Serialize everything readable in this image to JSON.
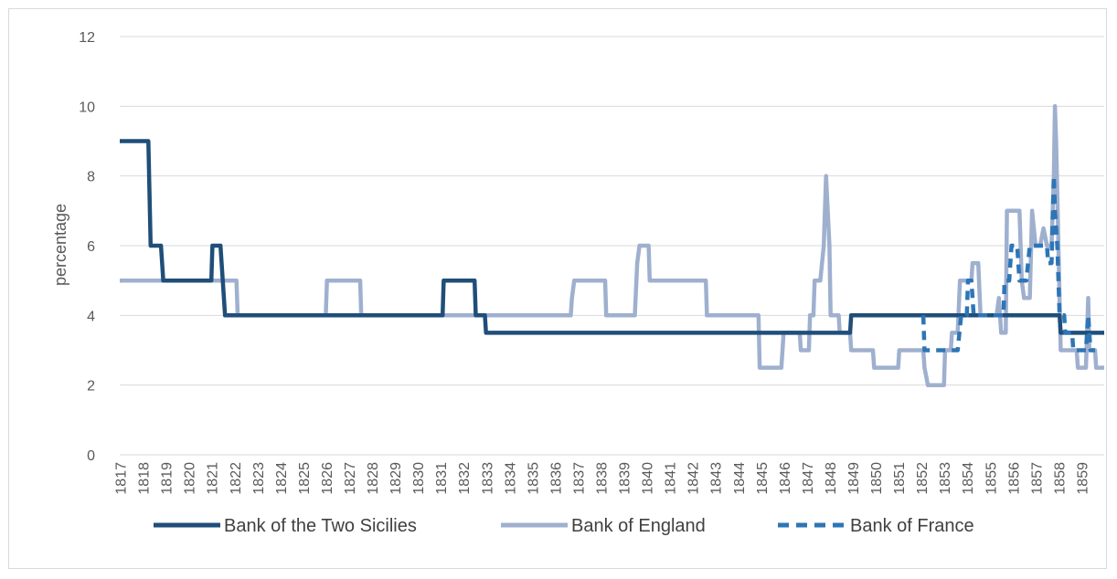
{
  "chart_data": {
    "type": "line",
    "title": "",
    "xlabel": "",
    "ylabel": "percentage",
    "ylim": [
      0,
      12
    ],
    "yticks": [
      0,
      2,
      4,
      6,
      8,
      10,
      12
    ],
    "xlim": [
      1817,
      1860
    ],
    "xtick_labels": [
      "1817",
      "1818",
      "1819",
      "1820",
      "1821",
      "1822",
      "1823",
      "1824",
      "1825",
      "1826",
      "1827",
      "1828",
      "1829",
      "1830",
      "1831",
      "1832",
      "1833",
      "1834",
      "1835",
      "1836",
      "1837",
      "1838",
      "1839",
      "1840",
      "1841",
      "1842",
      "1843",
      "1844",
      "1845",
      "1846",
      "1847",
      "1848",
      "1849",
      "1850",
      "1851",
      "1852",
      "1853",
      "1854",
      "1855",
      "1856",
      "1857",
      "1858",
      "1859"
    ],
    "grid": "horizontal",
    "legend_position": "bottom",
    "colors": {
      "two_sicilies": "#1f4e79",
      "england": "#9fb0cf",
      "france": "#2e75b6"
    },
    "series": [
      {
        "name": "Bank of the Two Sicilies",
        "style": "solid",
        "color": "#1f4e79",
        "points": [
          [
            1817.0,
            9
          ],
          [
            1818.25,
            9
          ],
          [
            1818.35,
            6
          ],
          [
            1818.8,
            6
          ],
          [
            1818.9,
            5
          ],
          [
            1821.0,
            5
          ],
          [
            1821.05,
            6
          ],
          [
            1821.4,
            6
          ],
          [
            1821.6,
            4
          ],
          [
            1831.1,
            4
          ],
          [
            1831.15,
            5
          ],
          [
            1832.5,
            5
          ],
          [
            1832.55,
            4
          ],
          [
            1832.95,
            4
          ],
          [
            1833.0,
            3.5
          ],
          [
            1848.9,
            3.5
          ],
          [
            1848.95,
            4
          ],
          [
            1858.05,
            4
          ],
          [
            1858.1,
            3.5
          ],
          [
            1860.0,
            3.5
          ]
        ]
      },
      {
        "name": "Bank of England",
        "style": "solid",
        "color": "#9fb0cf",
        "points": [
          [
            1817.0,
            5
          ],
          [
            1822.1,
            5
          ],
          [
            1822.15,
            4
          ],
          [
            1826.0,
            4
          ],
          [
            1826.05,
            5
          ],
          [
            1827.5,
            5
          ],
          [
            1827.55,
            4
          ],
          [
            1836.7,
            4
          ],
          [
            1836.75,
            4.5
          ],
          [
            1836.85,
            5
          ],
          [
            1838.2,
            5
          ],
          [
            1838.25,
            4
          ],
          [
            1839.5,
            4
          ],
          [
            1839.6,
            5.5
          ],
          [
            1839.7,
            6
          ],
          [
            1840.1,
            6
          ],
          [
            1840.15,
            5
          ],
          [
            1842.6,
            5
          ],
          [
            1842.65,
            4
          ],
          [
            1844.9,
            4
          ],
          [
            1844.95,
            2.5
          ],
          [
            1845.9,
            2.5
          ],
          [
            1846.0,
            3.5
          ],
          [
            1846.7,
            3.5
          ],
          [
            1846.75,
            3
          ],
          [
            1847.1,
            3
          ],
          [
            1847.15,
            4
          ],
          [
            1847.3,
            4
          ],
          [
            1847.35,
            5
          ],
          [
            1847.6,
            5
          ],
          [
            1847.75,
            6
          ],
          [
            1847.85,
            8
          ],
          [
            1848.0,
            6
          ],
          [
            1848.05,
            4
          ],
          [
            1848.4,
            4
          ],
          [
            1848.45,
            3.5
          ],
          [
            1848.9,
            3.5
          ],
          [
            1848.95,
            3
          ],
          [
            1849.9,
            3
          ],
          [
            1849.95,
            2.5
          ],
          [
            1851.0,
            2.5
          ],
          [
            1851.05,
            3
          ],
          [
            1852.1,
            3
          ],
          [
            1852.15,
            2.5
          ],
          [
            1852.3,
            2
          ],
          [
            1853.0,
            2
          ],
          [
            1853.05,
            3
          ],
          [
            1853.3,
            3
          ],
          [
            1853.35,
            3.5
          ],
          [
            1853.6,
            3.5
          ],
          [
            1853.7,
            5
          ],
          [
            1854.2,
            5
          ],
          [
            1854.25,
            5.5
          ],
          [
            1854.5,
            5.5
          ],
          [
            1854.6,
            4
          ],
          [
            1855.3,
            4
          ],
          [
            1855.4,
            4.5
          ],
          [
            1855.5,
            3.5
          ],
          [
            1855.7,
            3.5
          ],
          [
            1855.75,
            7
          ],
          [
            1856.3,
            7
          ],
          [
            1856.4,
            5
          ],
          [
            1856.5,
            4.5
          ],
          [
            1856.75,
            4.5
          ],
          [
            1856.85,
            7
          ],
          [
            1857.0,
            6
          ],
          [
            1857.2,
            6
          ],
          [
            1857.35,
            6.5
          ],
          [
            1857.5,
            6
          ],
          [
            1857.7,
            6
          ],
          [
            1857.8,
            8
          ],
          [
            1857.85,
            10
          ],
          [
            1857.9,
            9
          ],
          [
            1858.0,
            6
          ],
          [
            1858.1,
            3
          ],
          [
            1858.8,
            3
          ],
          [
            1858.85,
            2.5
          ],
          [
            1859.2,
            2.5
          ],
          [
            1859.3,
            4.5
          ],
          [
            1859.35,
            3
          ],
          [
            1859.6,
            3
          ],
          [
            1859.65,
            2.5
          ],
          [
            1860.0,
            2.5
          ]
        ]
      },
      {
        "name": "Bank of France",
        "style": "dashed",
        "color": "#2e75b6",
        "points": [
          [
            1852.1,
            4
          ],
          [
            1852.15,
            3
          ],
          [
            1853.6,
            3
          ],
          [
            1853.75,
            4
          ],
          [
            1854.0,
            4
          ],
          [
            1854.05,
            5
          ],
          [
            1854.2,
            5
          ],
          [
            1854.3,
            4
          ],
          [
            1855.6,
            4
          ],
          [
            1855.65,
            5
          ],
          [
            1855.85,
            5
          ],
          [
            1855.95,
            6
          ],
          [
            1856.2,
            6
          ],
          [
            1856.3,
            5
          ],
          [
            1856.6,
            5
          ],
          [
            1856.75,
            6
          ],
          [
            1857.5,
            6
          ],
          [
            1857.55,
            5.5
          ],
          [
            1857.7,
            5.5
          ],
          [
            1857.8,
            8
          ],
          [
            1857.85,
            7
          ],
          [
            1857.95,
            6
          ],
          [
            1858.05,
            4
          ],
          [
            1858.25,
            4
          ],
          [
            1858.3,
            3.5
          ],
          [
            1858.6,
            3.5
          ],
          [
            1858.65,
            3
          ],
          [
            1859.2,
            3
          ],
          [
            1859.3,
            4
          ],
          [
            1859.4,
            3
          ],
          [
            1859.6,
            3
          ]
        ]
      }
    ]
  }
}
